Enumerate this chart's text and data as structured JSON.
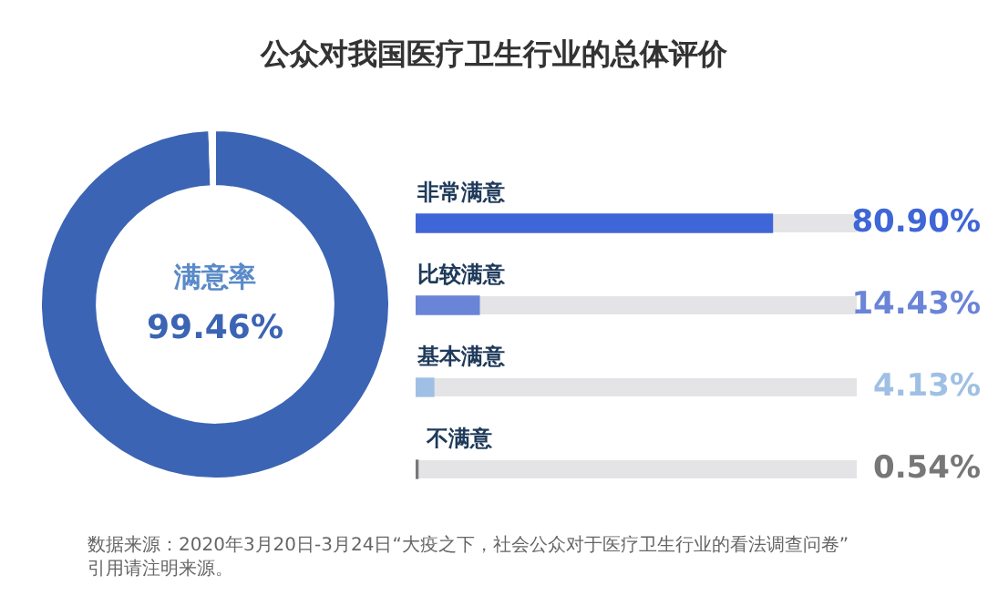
{
  "chart_data": [
    {
      "type": "donut",
      "title": "公众对我国医疗卫生行业的总体评价",
      "categories": [
        "满意率",
        null
      ],
      "values": [
        99.46,
        0.54
      ],
      "colors": [
        "#3c64b4",
        "#ffffff"
      ],
      "value_labels": [
        "99.46%",
        null
      ],
      "legend": false
    },
    {
      "type": "bar",
      "orientation": "horizontal",
      "categories": [
        "非常满意",
        "比较满意",
        "基本满意",
        "不满意"
      ],
      "values": [
        80.9,
        14.43,
        4.13,
        0.54
      ],
      "colors": [
        "#3f66d6",
        "#6a84d8",
        "#9fc0e4",
        "#777777"
      ],
      "value_labels": [
        "80.90%",
        "14.43%",
        "4.13%",
        "0.54%"
      ],
      "xlim": [
        0,
        100
      ],
      "tick_labels": false,
      "legend": false,
      "annotations": [
        "数据来源：2020年3月20日-3月24日“大疫之下，社会公众对于医疗卫生行业的看法调查问卷”",
        "引用请注明来源。"
      ]
    }
  ]
}
